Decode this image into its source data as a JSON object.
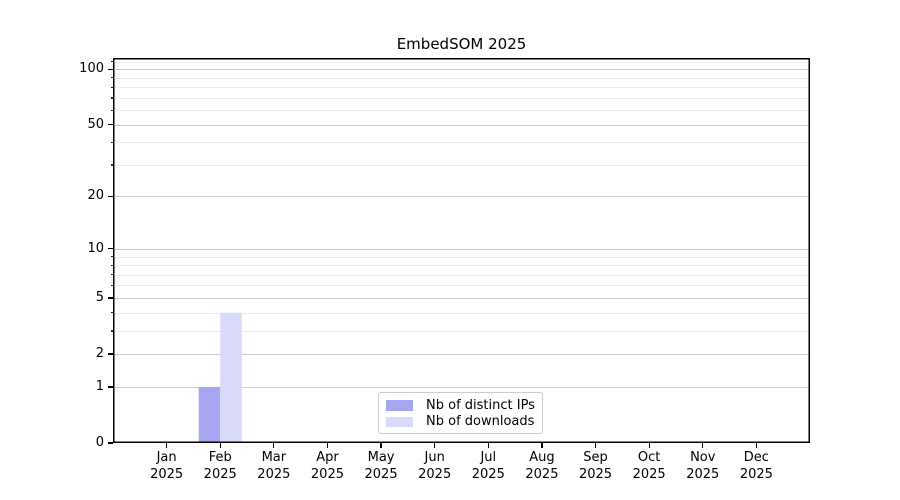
{
  "chart_data": {
    "type": "bar",
    "title": "EmbedSOM 2025",
    "year_label": "2025",
    "categories": [
      "Jan",
      "Feb",
      "Mar",
      "Apr",
      "May",
      "Jun",
      "Jul",
      "Aug",
      "Sep",
      "Oct",
      "Nov",
      "Dec"
    ],
    "series": [
      {
        "name": "Nb of distinct IPs",
        "color": "#a5a5f0",
        "values": [
          0,
          1,
          0,
          0,
          0,
          0,
          0,
          0,
          0,
          0,
          0,
          0
        ]
      },
      {
        "name": "Nb of downloads",
        "color": "#d9d9fa",
        "values": [
          0,
          4,
          0,
          0,
          0,
          0,
          0,
          0,
          0,
          0,
          0,
          0
        ]
      }
    ],
    "y_axis": {
      "major_ticks": [
        0,
        1,
        2,
        5,
        10,
        20,
        50,
        100
      ],
      "minor_ticks": [
        3,
        4,
        6,
        7,
        8,
        9,
        30,
        40,
        60,
        70,
        80,
        90,
        110
      ],
      "scale": "log1p",
      "ylim": [
        0,
        115
      ]
    },
    "grid": true,
    "legend_position": "lower center",
    "colors": {
      "major_grid": "#cccccc",
      "minor_grid": "#ebebeb",
      "axis": "#000000",
      "background": "#ffffff"
    }
  }
}
